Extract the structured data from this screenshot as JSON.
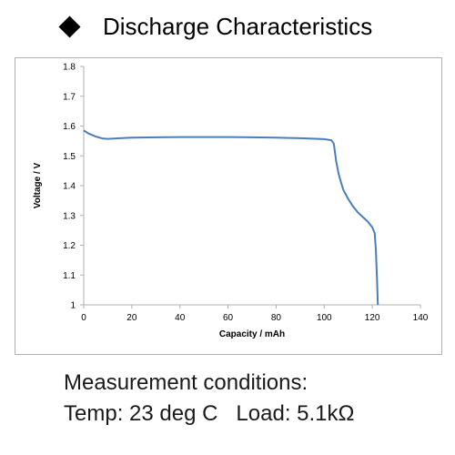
{
  "title": "Discharge Characteristics",
  "conditions": {
    "line1": "Measurement conditions:",
    "line2": "Temp: 23 deg C   Load: 5.1kΩ"
  },
  "colors": {
    "series": "#4a7ebb",
    "frame": "#b0b0b0",
    "grid": "#d9d9d9"
  },
  "chart_data": {
    "type": "line",
    "title": "",
    "xlabel": "Capacity  /  mAh",
    "ylabel": "Voltage  /  V",
    "xlim": [
      0,
      140
    ],
    "ylim": [
      1,
      1.8
    ],
    "xticks": [
      0,
      20,
      40,
      60,
      80,
      100,
      120,
      140
    ],
    "yticks": [
      1,
      1.1,
      1.2,
      1.3,
      1.4,
      1.5,
      1.6,
      1.7,
      1.8
    ],
    "grid": false,
    "legend": "none",
    "series": [
      {
        "x": [
          0,
          2,
          5,
          8,
          10,
          15,
          20,
          30,
          40,
          50,
          60,
          70,
          80,
          90,
          100,
          103,
          104,
          104.5,
          105,
          106,
          107,
          108,
          110,
          112,
          114,
          116,
          118,
          120,
          121,
          121.5,
          122,
          122.3
        ],
        "y": [
          1.585,
          1.575,
          1.565,
          1.558,
          1.557,
          1.559,
          1.561,
          1.562,
          1.563,
          1.563,
          1.563,
          1.562,
          1.561,
          1.559,
          1.556,
          1.552,
          1.54,
          1.51,
          1.48,
          1.44,
          1.41,
          1.385,
          1.355,
          1.33,
          1.31,
          1.295,
          1.28,
          1.26,
          1.24,
          1.18,
          1.08,
          1.0
        ]
      }
    ]
  }
}
